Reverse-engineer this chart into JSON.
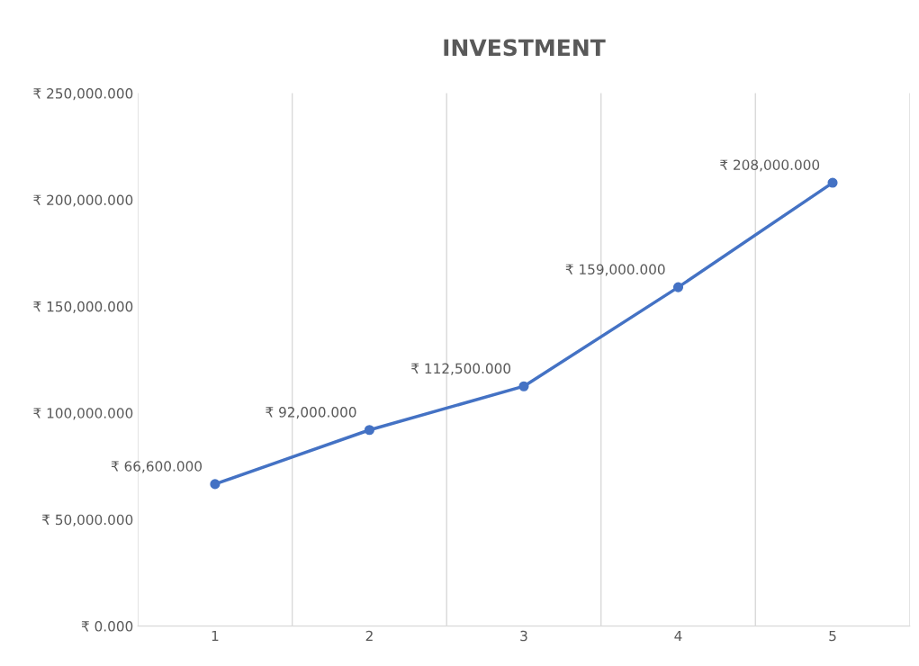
{
  "chart_data": {
    "type": "line",
    "title": "INVESTMENT",
    "categories": [
      "1",
      "2",
      "3",
      "4",
      "5"
    ],
    "series": [
      {
        "color": "#4472c4",
        "values": [
          66600,
          92000,
          112500,
          159000,
          208000
        ],
        "value_labels": [
          "₹ 66,600.000",
          "₹ 92,000.000",
          "₹ 112,500.000",
          "₹ 159,000.000",
          "₹ 208,000.000"
        ]
      }
    ],
    "ylim": [
      0,
      250000
    ],
    "yticks": [
      {
        "value": 0,
        "label": "₹ 0.000"
      },
      {
        "value": 50000,
        "label": "₹ 50,000.000"
      },
      {
        "value": 100000,
        "label": "₹ 100,000.000"
      },
      {
        "value": 150000,
        "label": "₹ 150,000.000"
      },
      {
        "value": 200000,
        "label": "₹ 200,000.000"
      },
      {
        "value": 250000,
        "label": "₹ 250,000.000"
      }
    ],
    "grid": "x",
    "marker": "circle",
    "line_style": "solid"
  }
}
